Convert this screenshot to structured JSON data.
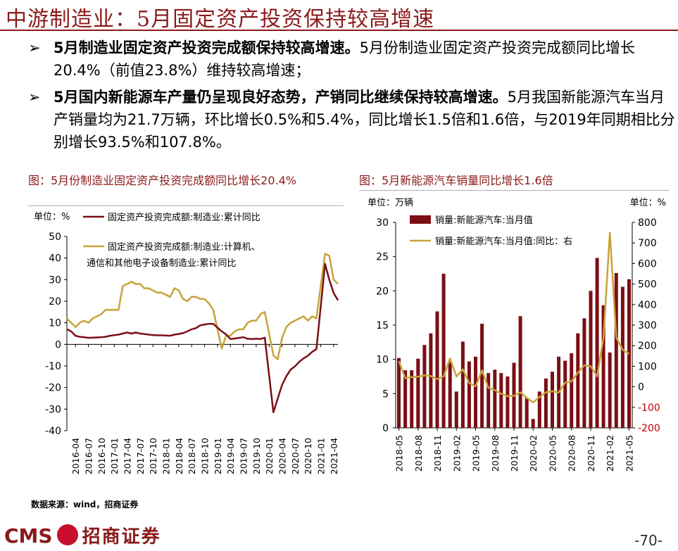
{
  "header": {
    "title": "中游制造业：5月固定资产投资保持较高增速"
  },
  "bullets": [
    {
      "bold": "5月制造业固定资产投资完成额保持较高增速。",
      "text": "5月份制造业固定资产投资完成额同比增长20.4%（前值23.8%）维持较高增速；"
    },
    {
      "bold": "5月国内新能源车产量仍呈现良好态势，产销同比继续保持较高增速。",
      "text": "5月我国新能源汽车当月产销量均为21.7万辆，环比增长0.5%和5.4%，同比增长1.5倍和1.6倍，与2019年同期相比分别增长93.5%和107.8%。"
    }
  ],
  "bullet_arrow": "➢",
  "source": "数据来源：wind，招商证券",
  "footer": {
    "brand": "CMS",
    "brand_cn": "招商证券",
    "page": "-70-"
  },
  "colors": {
    "accent": "#8b1a1a",
    "series1": "#7a0f14",
    "series2": "#c9a23a"
  },
  "chart_data": [
    {
      "type": "line",
      "title": "图：5月份制造业固定资产投资完成额同比增长20.4%",
      "unit_label": "单位：%",
      "ylim": [
        -40,
        50
      ],
      "yticks": [
        "50",
        "40",
        "30",
        "20",
        "10",
        "0",
        "-10",
        "-20",
        "-30",
        "-40"
      ],
      "x_labels": [
        "2016-04",
        "2016-07",
        "2016-10",
        "2017-01",
        "2017-04",
        "2017-07",
        "2017-10",
        "2018-01",
        "2018-04",
        "2018-07",
        "2018-10",
        "2019-01",
        "2019-04",
        "2019-07",
        "2019-10",
        "2020-01",
        "2020-04",
        "2020-07",
        "2020-10",
        "2021-01",
        "2021-04"
      ],
      "x": [
        "2016-02",
        "2016-03",
        "2016-04",
        "2016-05",
        "2016-06",
        "2016-07",
        "2016-08",
        "2016-09",
        "2016-10",
        "2016-11",
        "2016-12",
        "2017-02",
        "2017-03",
        "2017-04",
        "2017-05",
        "2017-06",
        "2017-07",
        "2017-08",
        "2017-09",
        "2017-10",
        "2017-11",
        "2017-12",
        "2018-02",
        "2018-03",
        "2018-04",
        "2018-05",
        "2018-06",
        "2018-07",
        "2018-08",
        "2018-09",
        "2018-10",
        "2018-11",
        "2018-12",
        "2019-02",
        "2019-03",
        "2019-04",
        "2019-05",
        "2019-06",
        "2019-07",
        "2019-08",
        "2019-09",
        "2019-10",
        "2019-11",
        "2019-12",
        "2020-02",
        "2020-03",
        "2020-04",
        "2020-05",
        "2020-06",
        "2020-07",
        "2020-08",
        "2020-09",
        "2020-10",
        "2020-11",
        "2020-12",
        "2021-02",
        "2021-03",
        "2021-04",
        "2021-05"
      ],
      "series": [
        {
          "name": "固定资产投资完成额:制造业:累计同比",
          "values": [
            7,
            6,
            4,
            3.5,
            3.3,
            3,
            3.1,
            3.2,
            3.3,
            3.5,
            4,
            4.5,
            5,
            5.5,
            5,
            5.5,
            5,
            4.8,
            4.5,
            4.3,
            4.2,
            4.2,
            4,
            4.5,
            4.8,
            5.2,
            6,
            7,
            7.5,
            8.8,
            9.2,
            9.5,
            9.5,
            6,
            4.6,
            2.5,
            2.7,
            3,
            3.3,
            2.6,
            2.5,
            2.6,
            2.5,
            3.1,
            -31.5,
            -25.2,
            -18.8,
            -14.8,
            -11.7,
            -10.2,
            -8.1,
            -6.5,
            -5.3,
            -3.5,
            -2.2,
            37.3,
            29.8,
            23.8,
            20.4
          ]
        },
        {
          "name": "固定资产投资完成额:制造业:计算机、通信和其他电子设备制造业:累计同比",
          "values": [
            12,
            10,
            8,
            10,
            11,
            10,
            12,
            13,
            14,
            16,
            16,
            16,
            27,
            28,
            29,
            28,
            28,
            26,
            26,
            25,
            24,
            24,
            22,
            26,
            25,
            21,
            20,
            22,
            22,
            21,
            21,
            19,
            16,
            -2,
            4,
            4,
            6,
            7,
            7,
            10,
            11,
            11,
            14,
            15,
            -5,
            -7,
            3,
            8,
            10,
            11,
            12,
            13,
            11,
            13,
            12,
            42,
            41,
            30,
            28
          ]
        }
      ]
    },
    {
      "type": "bar+line",
      "title": "图：5月新能源汽车销量同比增长1.6倍",
      "left_unit": "单位：万辆",
      "right_unit": "单位：%",
      "ylim": [
        0,
        30
      ],
      "y2lim": [
        -200,
        800
      ],
      "yticks": [
        "30",
        "25",
        "20",
        "15",
        "10",
        "5",
        "0"
      ],
      "y2ticks": [
        "800",
        "700",
        "600",
        "500",
        "400",
        "300",
        "200",
        "100",
        "0",
        "-100",
        "-200"
      ],
      "x_labels": [
        "2018-05",
        "2018-08",
        "2018-11",
        "2019-02",
        "2019-05",
        "2019-08",
        "2019-11",
        "2020-02",
        "2020-05",
        "2020-08",
        "2020-11",
        "2021-02",
        "2021-05"
      ],
      "x": [
        "2018-05",
        "2018-06",
        "2018-07",
        "2018-08",
        "2018-09",
        "2018-10",
        "2018-11",
        "2018-12",
        "2019-01",
        "2019-02",
        "2019-03",
        "2019-04",
        "2019-05",
        "2019-06",
        "2019-07",
        "2019-08",
        "2019-09",
        "2019-10",
        "2019-11",
        "2019-12",
        "2020-01",
        "2020-02",
        "2020-03",
        "2020-04",
        "2020-05",
        "2020-06",
        "2020-07",
        "2020-08",
        "2020-09",
        "2020-10",
        "2020-11",
        "2020-12",
        "2021-01",
        "2021-02",
        "2021-03",
        "2021-04",
        "2021-05"
      ],
      "series": [
        {
          "name": "销量:新能源汽车:当月值",
          "axis": "left",
          "values": [
            10.2,
            8.4,
            8.4,
            10.1,
            12.1,
            13.8,
            17.0,
            22.5,
            9.6,
            5.3,
            12.6,
            9.7,
            10.4,
            15.2,
            8.0,
            8.5,
            8.0,
            7.5,
            9.5,
            16.3,
            4.4,
            1.3,
            5.3,
            7.2,
            8.2,
            10.4,
            9.8,
            10.9,
            13.8,
            16.0,
            20.0,
            24.8,
            17.9,
            11.0,
            22.6,
            20.6,
            21.7
          ]
        },
        {
          "name": "销量:新能源汽车:当月值:同比：右",
          "axis": "right",
          "values": [
            125,
            42,
            47,
            49,
            55,
            52,
            37,
            50,
            138,
            50,
            85,
            18,
            2,
            80,
            -5,
            -16,
            -34,
            -46,
            -44,
            -27,
            -54,
            -76,
            -50,
            -27,
            -22,
            -28,
            20,
            26,
            68,
            104,
            100,
            50,
            238,
            750,
            240,
            180,
            160
          ]
        }
      ]
    }
  ]
}
